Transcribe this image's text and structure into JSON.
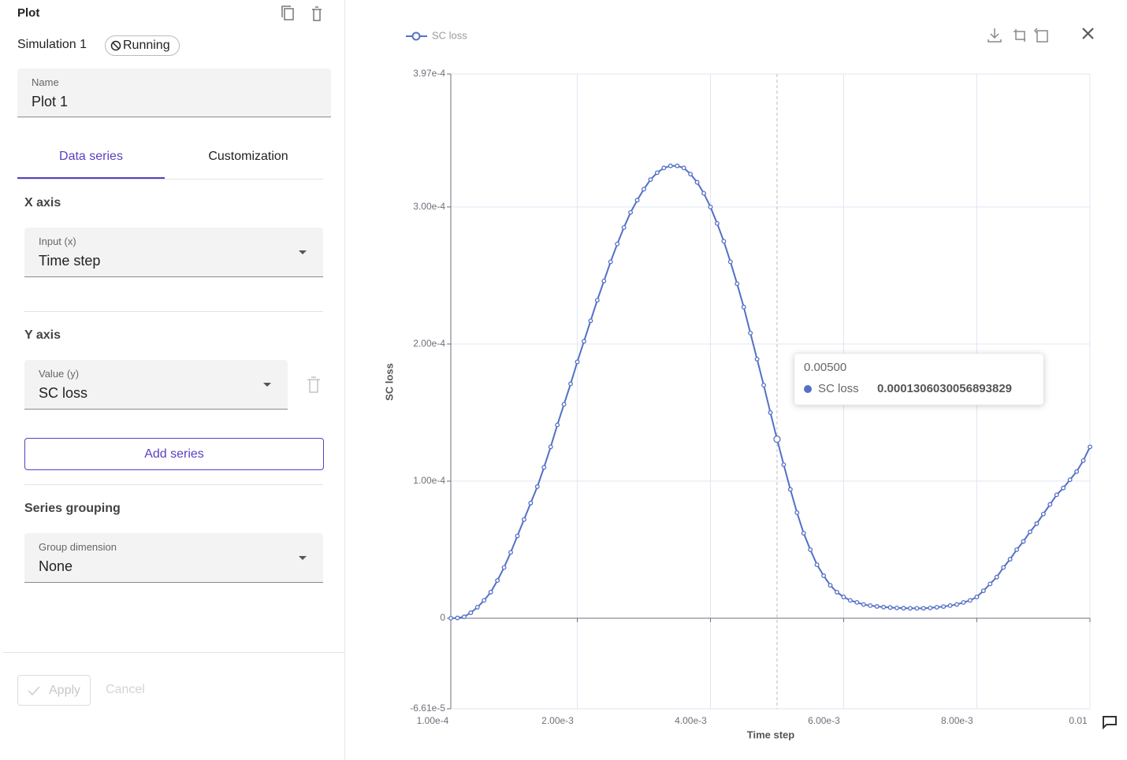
{
  "panel": {
    "title": "Plot",
    "simulation": "Simulation 1",
    "status": "Running",
    "name_field": {
      "label": "Name",
      "value": "Plot 1"
    },
    "tabs": [
      "Data series",
      "Customization"
    ],
    "x_axis": {
      "heading": "X axis",
      "label": "Input (x)",
      "value": "Time step"
    },
    "y_axis": {
      "heading": "Y axis",
      "label": "Value (y)",
      "value": "SC loss"
    },
    "add_series": "Add series",
    "grouping": {
      "heading": "Series grouping",
      "label": "Group dimension",
      "value": "None"
    },
    "apply": "Apply",
    "cancel": "Cancel"
  },
  "chart_data": {
    "type": "line",
    "xlabel": "Time step",
    "ylabel": "SC loss",
    "grid": true,
    "legend": "top-left",
    "xlim": [
      0.0001,
      0.0097
    ],
    "xticks": [
      {
        "value": 0.0001,
        "label": "1.00e-4"
      },
      {
        "value": 0.002,
        "label": "2.00e-3"
      },
      {
        "value": 0.004,
        "label": "4.00e-3"
      },
      {
        "value": 0.006,
        "label": "6.00e-3"
      },
      {
        "value": 0.008,
        "label": "8.00e-3"
      },
      {
        "value": 0.0097,
        "label": "0.01"
      }
    ],
    "ylim": [
      -6.61e-05,
      0.000397
    ],
    "yticks": [
      {
        "value": -6.61e-05,
        "label": "-6.61e-5"
      },
      0,
      {
        "value": 0.0001,
        "label": "1.00e-4"
      },
      {
        "value": 0.0002,
        "label": "2.00e-4"
      },
      {
        "value": 0.0003,
        "label": "3.00e-4"
      },
      {
        "value": 0.000397,
        "label": "3.97e-4"
      }
    ],
    "x": [
      0.0001,
      0.0002,
      0.0003,
      0.0004,
      0.0005,
      0.0006,
      0.0007,
      0.0008,
      0.0009,
      0.001,
      0.0011,
      0.0012,
      0.0013,
      0.0014,
      0.0015,
      0.0016,
      0.0017,
      0.0018,
      0.0019,
      0.002,
      0.0021,
      0.0022,
      0.0023,
      0.0024,
      0.0025,
      0.0026,
      0.0027,
      0.0028,
      0.0029,
      0.003,
      0.0031,
      0.0032,
      0.0033,
      0.0034,
      0.0035,
      0.0036,
      0.0037,
      0.0038,
      0.0039,
      0.004,
      0.0041,
      0.0042,
      0.0043,
      0.0044,
      0.0045,
      0.0046,
      0.0047,
      0.0048,
      0.0049,
      0.005,
      0.0051,
      0.0052,
      0.0053,
      0.0054,
      0.0055,
      0.0056,
      0.0057,
      0.0058,
      0.0059,
      0.006,
      0.0061,
      0.0062,
      0.0063,
      0.0064,
      0.0065,
      0.0066,
      0.0067,
      0.0068,
      0.0069,
      0.007,
      0.0071,
      0.0072,
      0.0073,
      0.0074,
      0.0075,
      0.0076,
      0.0077,
      0.0078,
      0.0079,
      0.008,
      0.0081,
      0.0082,
      0.0083,
      0.0084,
      0.0085,
      0.0086,
      0.0087,
      0.0088,
      0.0089,
      0.009,
      0.0091,
      0.0092,
      0.0093,
      0.0094,
      0.0095,
      0.0096,
      0.0097
    ],
    "series": [
      {
        "name": "SC loss",
        "color": "#5470c6",
        "values": [
          0,
          2e-07,
          1e-06,
          4e-06,
          8e-06,
          1.3e-05,
          1.9e-05,
          2.75e-05,
          3.7e-05,
          4.8e-05,
          6e-05,
          7.2e-05,
          8.4e-05,
          9.6e-05,
          0.00011,
          0.000125,
          0.000141,
          0.000156,
          0.000171,
          0.000187,
          0.000202,
          0.000217,
          0.000232,
          0.000246,
          0.00026,
          0.000273,
          0.000285,
          0.000296,
          0.000305,
          0.000313,
          0.00032,
          0.000325,
          0.0003285,
          0.00033,
          0.00033,
          0.0003285,
          0.000324,
          0.000318,
          0.00031,
          0.0003,
          0.000288,
          0.000275,
          0.00026,
          0.000244,
          0.000227,
          0.000208,
          0.000189,
          0.00017,
          0.00015,
          0.0001306030056893829,
          0.000112,
          9.4e-05,
          7.7e-05,
          6.2e-05,
          5e-05,
          3.9e-05,
          3.1e-05,
          2.4e-05,
          1.9e-05,
          1.55e-05,
          1.3e-05,
          1.15e-05,
          1e-05,
          9.2e-06,
          8.6e-06,
          8.1e-06,
          7.8e-06,
          7.5e-06,
          7.3e-06,
          7.2e-06,
          7.2e-06,
          7.2e-06,
          7.5e-06,
          8e-06,
          8.5e-06,
          9.2e-06,
          1e-05,
          1.15e-05,
          1.3e-05,
          1.55e-05,
          2e-05,
          2.5e-05,
          3e-05,
          3.7e-05,
          4.3e-05,
          5e-05,
          5.6e-05,
          6.3e-05,
          6.9e-05,
          7.6e-05,
          8.3e-05,
          9e-05,
          9.5e-05,
          0.000101,
          0.000107,
          0.000115,
          0.000125
        ]
      }
    ],
    "tooltip": {
      "x": {
        "value": 0.005,
        "label": "0.00500"
      }
    }
  }
}
